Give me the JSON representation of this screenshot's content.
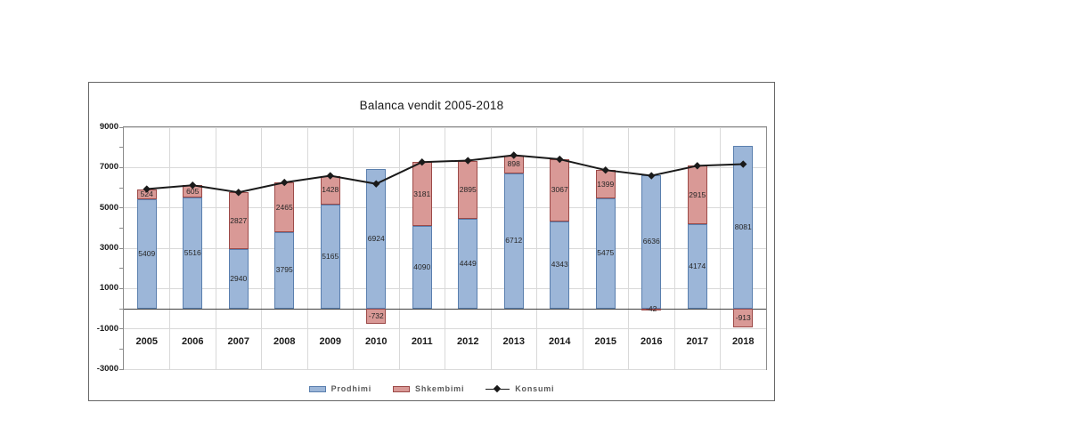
{
  "chart": {
    "title": "Balanca vendit 2005-2018",
    "legend": [
      {
        "label": "Prodhimi",
        "type": "bar",
        "color": "#9cb6d8",
        "border": "#5a7fae"
      },
      {
        "label": "Shkembimi",
        "type": "bar",
        "color": "#d99996",
        "border": "#9c4a48"
      },
      {
        "label": "Konsumi",
        "type": "line",
        "color": "#1a1a1a"
      }
    ]
  },
  "chart_data": {
    "type": "bar",
    "subtype": "stacked-bars-with-line-overlay",
    "title": "Balanca vendit 2005-2018",
    "categories": [
      "2005",
      "2006",
      "2007",
      "2008",
      "2009",
      "2010",
      "2011",
      "2012",
      "2013",
      "2014",
      "2015",
      "2016",
      "2017",
      "2018"
    ],
    "series": [
      {
        "name": "Prodhimi",
        "type": "bar",
        "color": "#9cb6d8",
        "border_color": "#5a7fae",
        "values": [
          5409,
          5516,
          2940,
          3795,
          5165,
          6924,
          4090,
          4449,
          6712,
          4343,
          5475,
          6636,
          4174,
          8081
        ]
      },
      {
        "name": "Shkembimi",
        "type": "bar",
        "color": "#d99996",
        "border_color": "#9c4a48",
        "values": [
          524,
          605,
          2827,
          2465,
          1428,
          -732,
          3181,
          2895,
          898,
          3067,
          1399,
          -42,
          2915,
          -913
        ]
      },
      {
        "name": "Konsumi",
        "type": "line",
        "color": "#1a1a1a",
        "marker": "diamond",
        "values": [
          5933,
          6121,
          5767,
          6260,
          6593,
          6192,
          7271,
          7344,
          7610,
          7410,
          6874,
          6594,
          7089,
          7168
        ]
      }
    ],
    "ylim": [
      -3000,
      9000
    ],
    "yticks": [
      9000,
      7000,
      5000,
      3000,
      1000,
      -1000,
      -3000
    ],
    "ytick_minor_interval": 1000,
    "grid": true,
    "legend_position": "bottom",
    "xlabel": "",
    "ylabel": ""
  }
}
